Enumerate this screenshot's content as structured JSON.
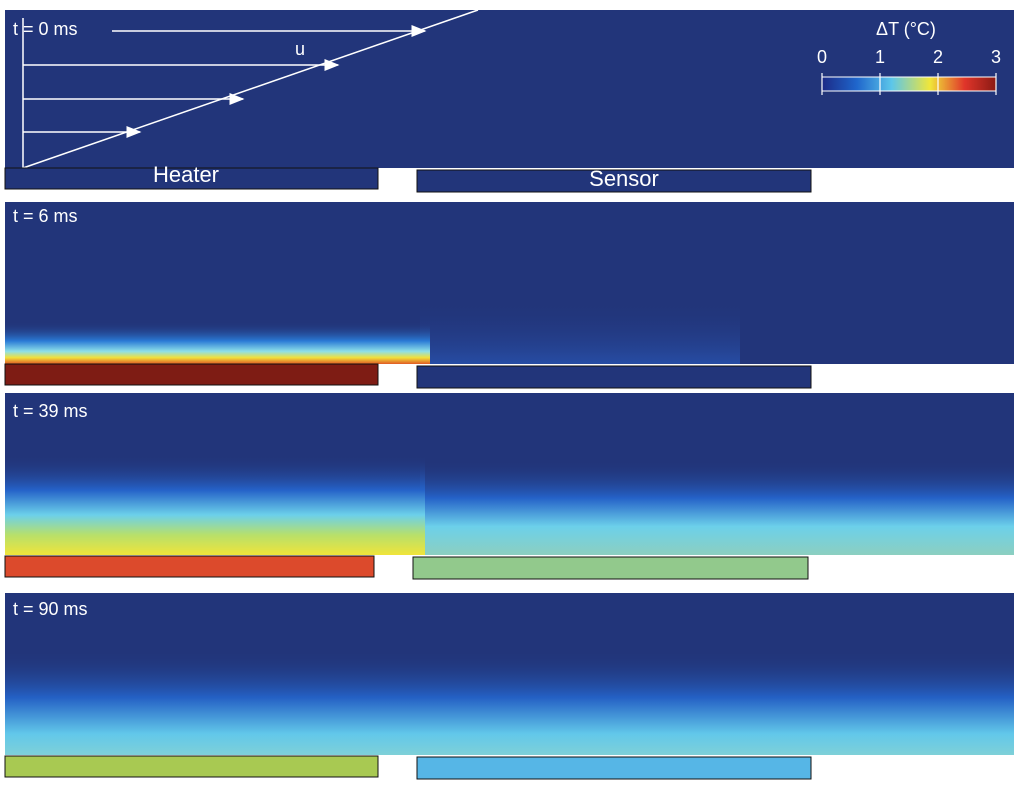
{
  "panels": [
    {
      "label": "t = 0 ms",
      "heater_color": "#22357a",
      "sensor_color": "#22357a"
    },
    {
      "label": "t = 6 ms",
      "heater_color": "#7e1c14",
      "sensor_color": "#22357a"
    },
    {
      "label": "t = 39 ms",
      "heater_color": "#dc4a2c",
      "sensor_color": "#92c98c"
    },
    {
      "label": "t = 90 ms",
      "heater_color": "#a8c952",
      "sensor_color": "#56b6e6"
    }
  ],
  "labels": {
    "heater": "Heater",
    "sensor": "Sensor",
    "velocity": "u"
  },
  "colorbar": {
    "title": "ΔT (°C)",
    "range": [
      0,
      3
    ],
    "ticks": [
      0,
      1,
      2,
      3
    ]
  }
}
